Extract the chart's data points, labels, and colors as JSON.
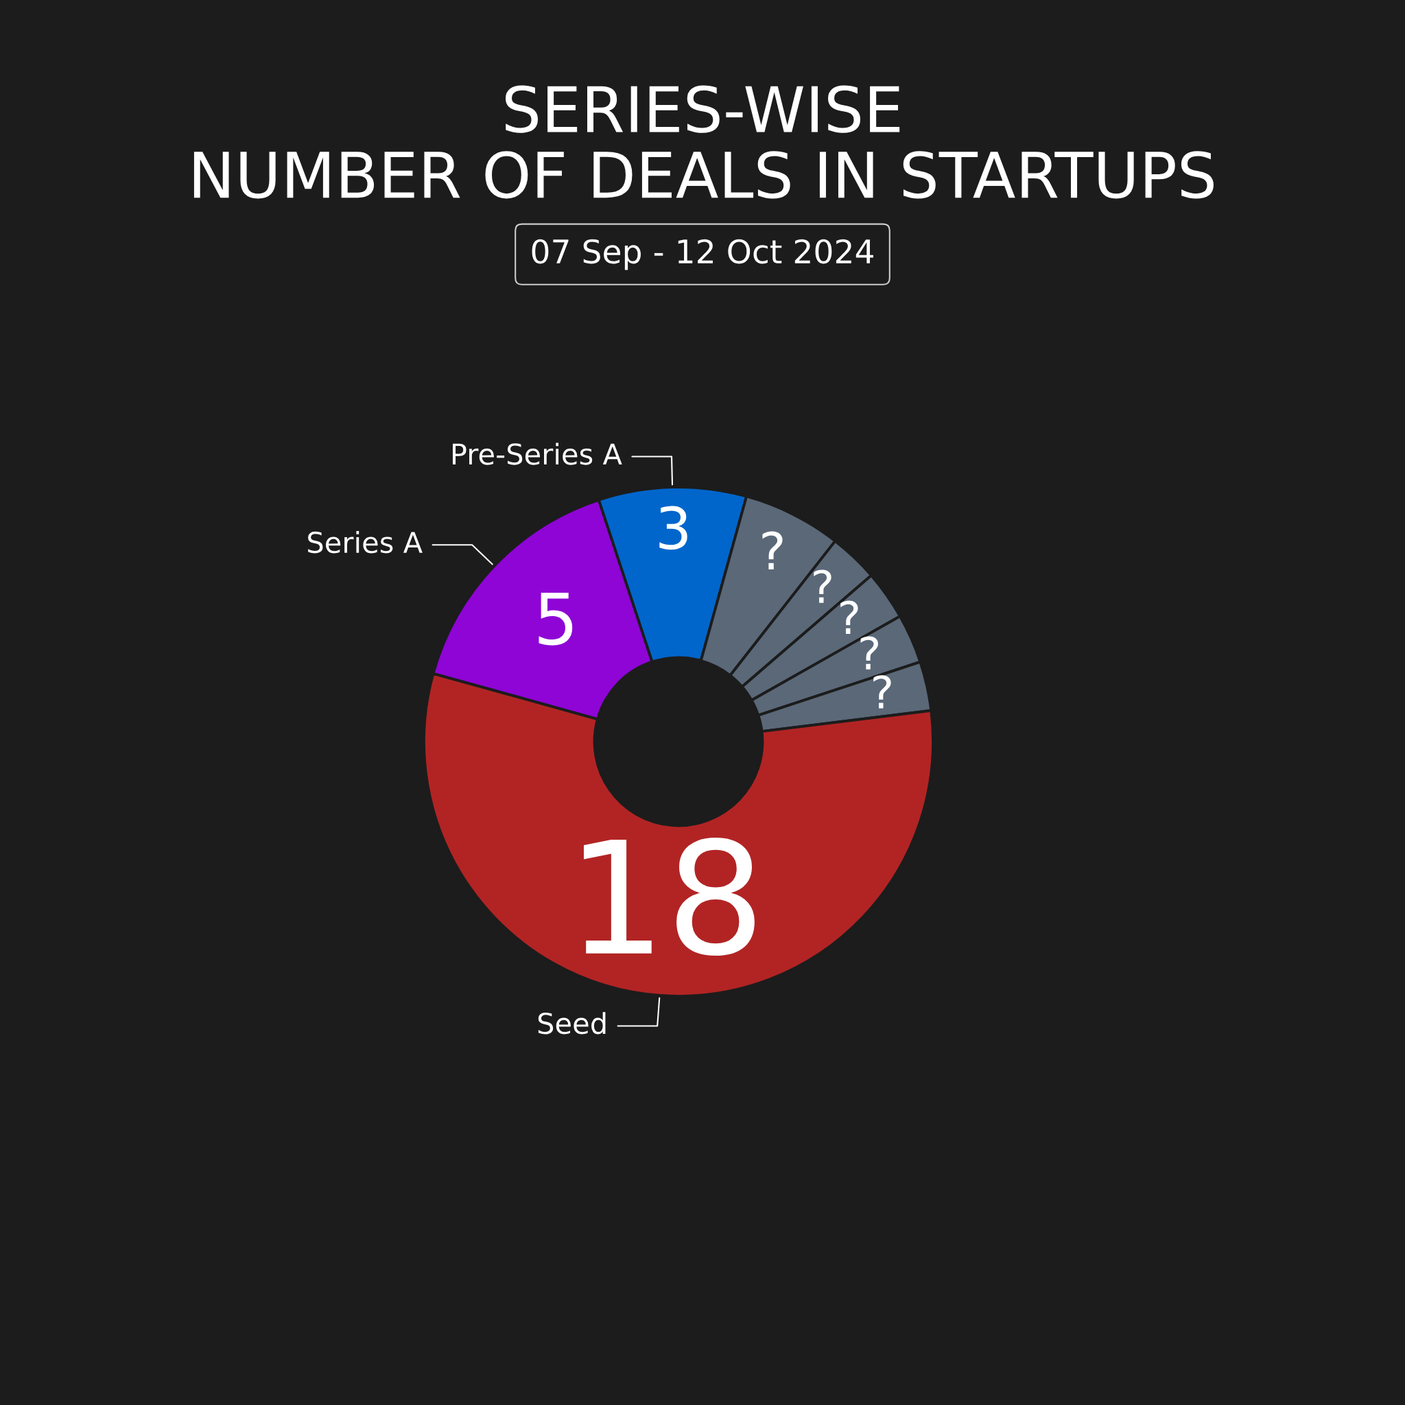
{
  "chart_data": {
    "type": "donut",
    "title": "SERIES-WISE\nNUMBER OF DEALS IN STARTUPS",
    "subtitle": "07 Sep - 12 Oct 2024",
    "categories": [
      "Series A",
      "Pre-Series A",
      null,
      null,
      null,
      null,
      null,
      "Seed"
    ],
    "values": [
      5,
      3,
      2,
      1,
      1,
      1,
      1,
      18
    ],
    "value_labels": [
      "5",
      "3",
      "?",
      "?",
      "?",
      "?",
      "?",
      "18"
    ],
    "colors": [
      "#8e05d6",
      "#0066cc",
      "#5a6878",
      "#5a6878",
      "#5a6878",
      "#5a6878",
      "#5a6878",
      "#b22424"
    ],
    "legend": false
  }
}
